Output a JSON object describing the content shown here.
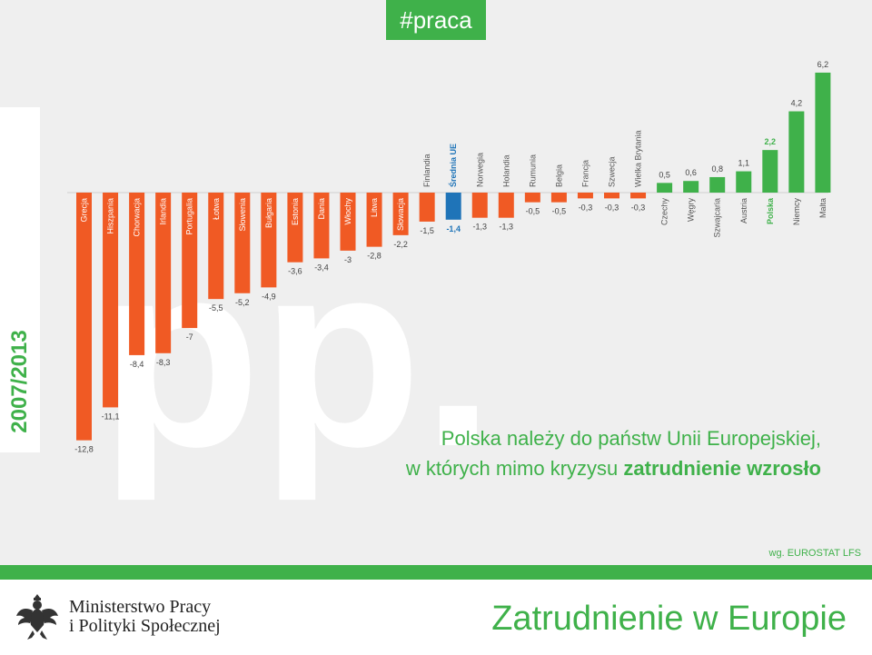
{
  "tag": "#praca",
  "period": "2007/2013",
  "note": {
    "line1": "Polska należy do państw Unii Europejskiej,",
    "line2_prefix": "w których mimo kryzysu ",
    "line2_bold": "zatrudnienie wzrosło"
  },
  "source": "wg. EUROSTAT LFS",
  "watermark": "pp.",
  "footer": {
    "ministry_line1": "Ministerstwo Pracy",
    "ministry_line2": "i Polityki Społecznej",
    "title": "Zatrudnienie w Europie",
    "logo_icon": "polish-eagle-icon"
  },
  "colors": {
    "negative": "#f05a24",
    "positive": "#3fb14a",
    "eu_average": "#1f74b8",
    "background": "#efefef"
  },
  "chart_data": {
    "type": "bar",
    "categories": [
      "Grecja",
      "Hiszpania",
      "Chorwacja",
      "Irlandia",
      "Portugalia",
      "Łotwa",
      "Słowenia",
      "Bułgaria",
      "Estonia",
      "Dania",
      "Włochy",
      "Litwa",
      "Słowacja",
      "Finlandia",
      "Średnia UE",
      "Norwegia",
      "Holandia",
      "Rumunia",
      "Belgia",
      "Francja",
      "Szwecja",
      "Wielka Brytania",
      "Czechy",
      "Węgry",
      "Szwajcaria",
      "Austria",
      "Polska",
      "Niemcy",
      "Malta"
    ],
    "values": [
      -12.8,
      -11.1,
      -8.4,
      -8.3,
      -7,
      -5.5,
      -5.2,
      -4.9,
      -3.6,
      -3.4,
      -3,
      -2.8,
      -2.2,
      -1.5,
      -1.4,
      -1.3,
      -1.3,
      -0.5,
      -0.5,
      -0.3,
      -0.3,
      -0.3,
      0.5,
      0.6,
      0.8,
      1.1,
      2.2,
      4.2,
      6.2
    ],
    "value_labels": [
      "-12,8",
      "-11,1",
      "-8,4",
      "-8,3",
      "-7",
      "-5,5",
      "-5,2",
      "-4,9",
      "-3,6",
      "-3,4",
      "-3",
      "-2,8",
      "-2,2",
      "-1,5",
      "-1,4",
      "-1,3",
      "-1,3",
      "-0,5",
      "-0,5",
      "-0,3",
      "-0,3",
      "-0,3",
      "0,5",
      "0,6",
      "0,8",
      "1,1",
      "2,2",
      "4,2",
      "6,2"
    ],
    "highlight": {
      "Średnia UE": "eu_average",
      "Polska": "positive_bold"
    },
    "unit": "pp.",
    "xlabel": "",
    "ylabel": "",
    "ylim": [
      -12.8,
      6.2
    ],
    "grid": false,
    "legend": "none"
  }
}
